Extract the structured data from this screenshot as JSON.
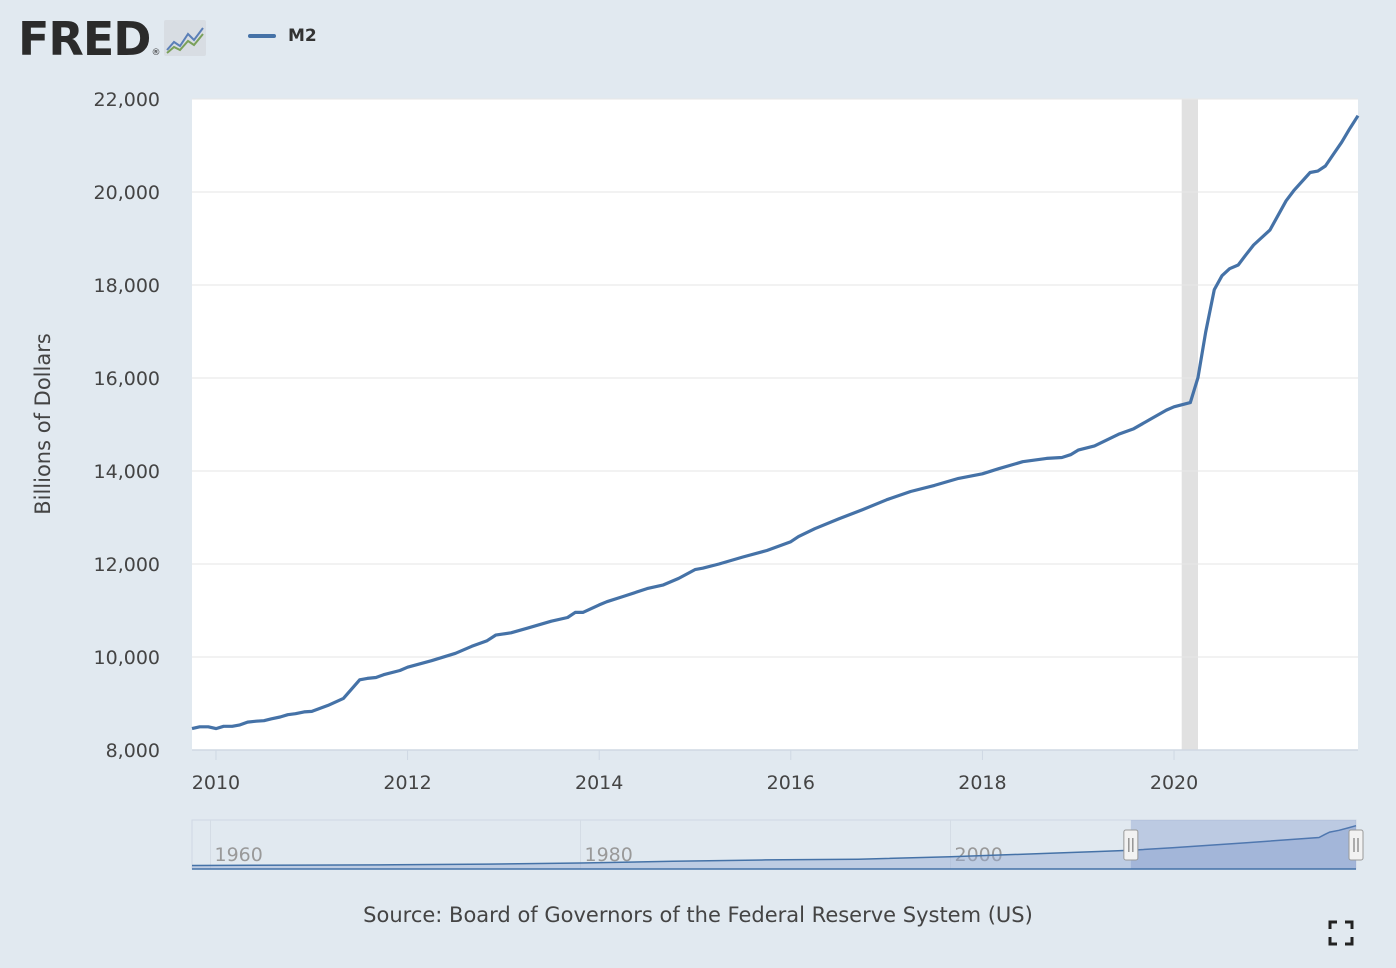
{
  "brand": {
    "logo_text": "FRED",
    "registered": "®"
  },
  "legend": {
    "label": "M2"
  },
  "source": "Source: Board of Governors of the Federal Reserve System (US)",
  "colors": {
    "series": "#4572a7",
    "recession": "#e1e1e1",
    "background": "#e1e9f0",
    "navigator_fill": "#93a9d3"
  },
  "icons": {
    "fullscreen": "fullscreen-icon",
    "logo_graph": "line-chart-icon"
  },
  "chart_data": {
    "type": "line",
    "title": "",
    "xlabel": "",
    "ylabel": "Billions of Dollars",
    "ylim": [
      8000,
      22000
    ],
    "xlim": [
      2009.75,
      2021.92
    ],
    "grid": true,
    "legend_position": "top-left",
    "y_ticks": [
      "8,000",
      "10,000",
      "12,000",
      "14,000",
      "16,000",
      "18,000",
      "20,000",
      "22,000"
    ],
    "x_ticks": [
      "2010",
      "2012",
      "2014",
      "2016",
      "2018",
      "2020"
    ],
    "recession_bands": [
      [
        2020.08,
        2020.25
      ]
    ],
    "series": [
      {
        "name": "M2",
        "x": [
          2009.75,
          2009.83,
          2009.92,
          2010.0,
          2010.08,
          2010.17,
          2010.25,
          2010.33,
          2010.42,
          2010.5,
          2010.58,
          2010.67,
          2010.75,
          2010.83,
          2010.92,
          2011.0,
          2011.17,
          2011.33,
          2011.5,
          2011.58,
          2011.67,
          2011.75,
          2011.92,
          2012.0,
          2012.25,
          2012.5,
          2012.67,
          2012.83,
          2012.92,
          2013.08,
          2013.25,
          2013.5,
          2013.67,
          2013.75,
          2013.83,
          2014.0,
          2014.08,
          2014.25,
          2014.5,
          2014.67,
          2014.83,
          2015.0,
          2015.08,
          2015.25,
          2015.5,
          2015.75,
          2016.0,
          2016.08,
          2016.25,
          2016.5,
          2016.75,
          2017.0,
          2017.25,
          2017.5,
          2017.75,
          2018.0,
          2018.17,
          2018.42,
          2018.67,
          2018.83,
          2018.92,
          2019.0,
          2019.17,
          2019.42,
          2019.58,
          2019.75,
          2019.92,
          2020.0,
          2020.17,
          2020.25,
          2020.33,
          2020.42,
          2020.5,
          2020.58,
          2020.67,
          2020.75,
          2020.83,
          2021.0,
          2021.17,
          2021.25,
          2021.42,
          2021.5,
          2021.58,
          2021.67,
          2021.75,
          2021.83,
          2021.92
        ],
        "values": [
          8460,
          8500,
          8500,
          8460,
          8510,
          8510,
          8540,
          8600,
          8620,
          8630,
          8670,
          8710,
          8760,
          8780,
          8820,
          8830,
          8960,
          9110,
          9510,
          9540,
          9560,
          9620,
          9710,
          9780,
          9920,
          10080,
          10230,
          10350,
          10470,
          10520,
          10620,
          10770,
          10850,
          10960,
          10960,
          11120,
          11190,
          11300,
          11470,
          11550,
          11690,
          11880,
          11910,
          12000,
          12150,
          12290,
          12480,
          12590,
          12760,
          12970,
          13170,
          13380,
          13560,
          13690,
          13840,
          13940,
          14050,
          14200,
          14270,
          14290,
          14350,
          14450,
          14540,
          14790,
          14910,
          15110,
          15310,
          15380,
          15470,
          16010,
          16990,
          17900,
          18200,
          18350,
          18430,
          18650,
          18860,
          19180,
          19810,
          20030,
          20420,
          20450,
          20560,
          20830,
          21070,
          21350,
          21640
        ]
      }
    ],
    "navigator": {
      "x_ticks": [
        "1960",
        "1980",
        "2000"
      ],
      "selected_range": [
        2009.75,
        2021.92
      ]
    }
  }
}
